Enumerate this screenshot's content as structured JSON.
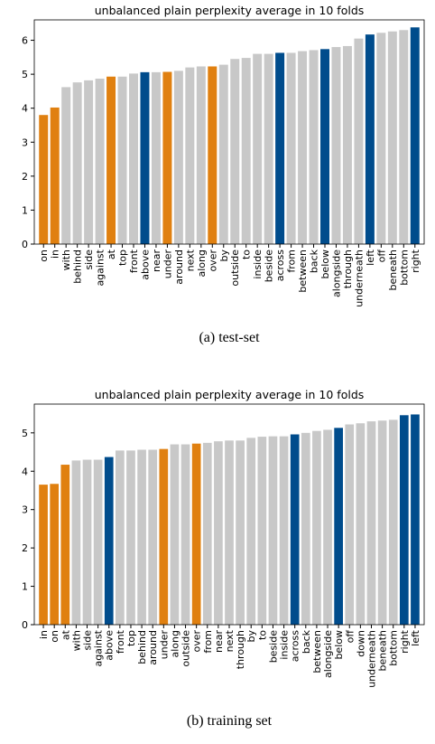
{
  "chart_data": [
    {
      "type": "bar",
      "title": "unbalanced plain perplexity average in 10 folds",
      "caption": "(a) test-set",
      "categories": [
        "on",
        "in",
        "with",
        "behind",
        "side",
        "against",
        "at",
        "top",
        "front",
        "above",
        "near",
        "under",
        "around",
        "next",
        "along",
        "over",
        "by",
        "outside",
        "to",
        "inside",
        "beside",
        "across",
        "from",
        "between",
        "back",
        "below",
        "alongside",
        "through",
        "underneath",
        "left",
        "off",
        "beneath",
        "bottom",
        "right"
      ],
      "values": [
        3.8,
        4.02,
        4.62,
        4.76,
        4.82,
        4.87,
        4.93,
        4.93,
        5.02,
        5.06,
        5.06,
        5.07,
        5.1,
        5.2,
        5.23,
        5.23,
        5.28,
        5.45,
        5.48,
        5.6,
        5.6,
        5.63,
        5.63,
        5.68,
        5.71,
        5.74,
        5.8,
        5.83,
        6.05,
        6.17,
        6.22,
        6.26,
        6.3,
        6.38
      ],
      "colors": [
        "#e08010",
        "#e08010",
        "#c8c8c8",
        "#c8c8c8",
        "#c8c8c8",
        "#c8c8c8",
        "#e08010",
        "#c8c8c8",
        "#c8c8c8",
        "#004c8c",
        "#c8c8c8",
        "#e08010",
        "#c8c8c8",
        "#c8c8c8",
        "#c8c8c8",
        "#e08010",
        "#c8c8c8",
        "#c8c8c8",
        "#c8c8c8",
        "#c8c8c8",
        "#c8c8c8",
        "#004c8c",
        "#c8c8c8",
        "#c8c8c8",
        "#c8c8c8",
        "#004c8c",
        "#c8c8c8",
        "#c8c8c8",
        "#c8c8c8",
        "#004c8c",
        "#c8c8c8",
        "#c8c8c8",
        "#c8c8c8",
        "#004c8c"
      ],
      "ylim": [
        0,
        6.6
      ],
      "yticks": [
        0,
        1,
        2,
        3,
        4,
        5,
        6
      ]
    },
    {
      "type": "bar",
      "title": "unbalanced plain perplexity average in 10 folds",
      "caption": "(b) training set",
      "categories": [
        "in",
        "on",
        "at",
        "with",
        "side",
        "against",
        "above",
        "front",
        "top",
        "behind",
        "around",
        "under",
        "along",
        "outside",
        "over",
        "from",
        "near",
        "next",
        "through",
        "by",
        "to",
        "beside",
        "inside",
        "across",
        "back",
        "between",
        "alongside",
        "below",
        "off",
        "down",
        "underneath",
        "beneath",
        "bottom",
        "right",
        "left"
      ],
      "values": [
        3.65,
        3.67,
        4.17,
        4.28,
        4.3,
        4.3,
        4.37,
        4.54,
        4.54,
        4.56,
        4.56,
        4.58,
        4.7,
        4.7,
        4.72,
        4.74,
        4.78,
        4.8,
        4.8,
        4.87,
        4.9,
        4.91,
        4.91,
        4.96,
        5.0,
        5.05,
        5.08,
        5.13,
        5.22,
        5.25,
        5.3,
        5.32,
        5.34,
        5.46,
        5.48
      ],
      "colors": [
        "#e08010",
        "#e08010",
        "#e08010",
        "#c8c8c8",
        "#c8c8c8",
        "#c8c8c8",
        "#004c8c",
        "#c8c8c8",
        "#c8c8c8",
        "#c8c8c8",
        "#c8c8c8",
        "#e08010",
        "#c8c8c8",
        "#c8c8c8",
        "#e08010",
        "#c8c8c8",
        "#c8c8c8",
        "#c8c8c8",
        "#c8c8c8",
        "#c8c8c8",
        "#c8c8c8",
        "#c8c8c8",
        "#c8c8c8",
        "#004c8c",
        "#c8c8c8",
        "#c8c8c8",
        "#c8c8c8",
        "#004c8c",
        "#c8c8c8",
        "#c8c8c8",
        "#c8c8c8",
        "#c8c8c8",
        "#c8c8c8",
        "#004c8c",
        "#004c8c"
      ],
      "ylim": [
        0,
        5.75
      ],
      "yticks": [
        0,
        1,
        2,
        3,
        4,
        5
      ]
    }
  ]
}
